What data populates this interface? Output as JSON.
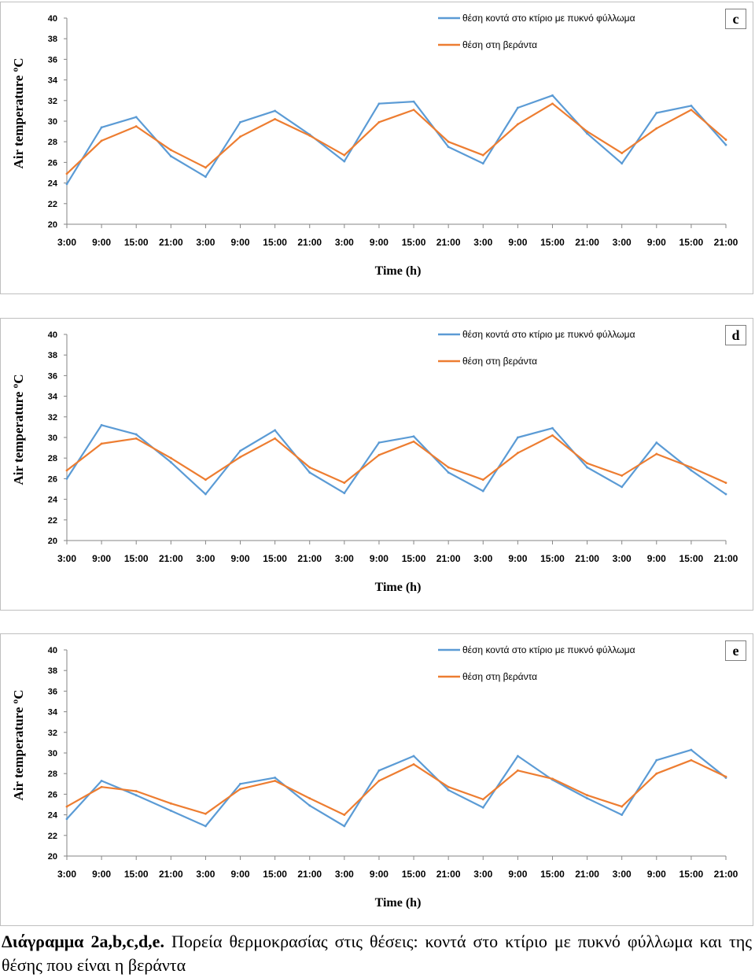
{
  "chart_data": [
    {
      "type": "line",
      "panel": "c",
      "ylabel": "Air temperature ºC",
      "xlabel": "Time (h)",
      "ylim": [
        20,
        40
      ],
      "yticks": [
        20,
        22,
        24,
        26,
        28,
        30,
        32,
        34,
        36,
        38,
        40
      ],
      "categories": [
        "3:00",
        "9:00",
        "15:00",
        "21:00",
        "3:00",
        "9:00",
        "15:00",
        "21:00",
        "3:00",
        "9:00",
        "15:00",
        "21:00",
        "3:00",
        "9:00",
        "15:00",
        "21:00",
        "3:00",
        "9:00",
        "15:00",
        "21:00"
      ],
      "series": [
        {
          "name": "θέση κοντά στο κτίριο με πυκνό φύλλωμα",
          "color": "#5b9bd5",
          "values": [
            23.9,
            29.4,
            30.4,
            26.6,
            24.6,
            29.9,
            31.0,
            28.7,
            26.1,
            31.7,
            31.9,
            27.5,
            25.9,
            31.3,
            32.5,
            28.8,
            25.9,
            30.8,
            31.5,
            27.7
          ]
        },
        {
          "name": "θέση στη βεράντα",
          "color": "#ed7d31",
          "values": [
            24.9,
            28.1,
            29.5,
            27.2,
            25.5,
            28.5,
            30.2,
            28.6,
            26.7,
            29.9,
            31.1,
            28.0,
            26.7,
            29.7,
            31.7,
            29.0,
            26.9,
            29.3,
            31.1,
            28.2
          ]
        }
      ]
    },
    {
      "type": "line",
      "panel": "d",
      "ylabel": "Air temperature ºC",
      "xlabel": "Time (h)",
      "ylim": [
        20,
        40
      ],
      "yticks": [
        20,
        22,
        24,
        26,
        28,
        30,
        32,
        34,
        36,
        38,
        40
      ],
      "categories": [
        "3:00",
        "9:00",
        "15:00",
        "21:00",
        "3:00",
        "9:00",
        "15:00",
        "21:00",
        "3:00",
        "9:00",
        "15:00",
        "21:00",
        "3:00",
        "9:00",
        "15:00",
        "21:00",
        "3:00",
        "9:00",
        "15:00",
        "21:00"
      ],
      "series": [
        {
          "name": "θέση κοντά στο κτίριο με πυκνό φύλλωμα",
          "color": "#5b9bd5",
          "values": [
            26.0,
            31.2,
            30.3,
            27.6,
            24.5,
            28.7,
            30.7,
            26.6,
            24.6,
            29.5,
            30.1,
            26.6,
            24.8,
            30.0,
            30.9,
            27.1,
            25.2,
            29.5,
            26.8,
            24.5
          ]
        },
        {
          "name": "θέση στη βεράντα",
          "color": "#ed7d31",
          "values": [
            26.8,
            29.4,
            29.9,
            28.0,
            25.9,
            28.1,
            29.9,
            27.1,
            25.6,
            28.3,
            29.6,
            27.1,
            25.9,
            28.5,
            30.2,
            27.5,
            26.3,
            28.4,
            27.1,
            25.6
          ]
        }
      ]
    },
    {
      "type": "line",
      "panel": "e",
      "ylabel": "Air temperature ºC",
      "xlabel": "Time (h)",
      "ylim": [
        20,
        40
      ],
      "yticks": [
        20,
        22,
        24,
        26,
        28,
        30,
        32,
        34,
        36,
        38,
        40
      ],
      "categories": [
        "3:00",
        "9:00",
        "15:00",
        "21:00",
        "3:00",
        "9:00",
        "15:00",
        "21:00",
        "3:00",
        "9:00",
        "15:00",
        "21:00",
        "3:00",
        "9:00",
        "15:00",
        "21:00",
        "3:00",
        "9:00",
        "15:00",
        "21:00"
      ],
      "series": [
        {
          "name": "θέση κοντά στο κτίριο με πυκνό φύλλωμα",
          "color": "#5b9bd5",
          "values": [
            23.6,
            27.3,
            25.9,
            24.4,
            22.9,
            27.0,
            27.6,
            24.9,
            22.9,
            28.3,
            29.7,
            26.4,
            24.7,
            29.7,
            27.4,
            25.6,
            24.0,
            29.3,
            30.3,
            27.6
          ]
        },
        {
          "name": "θέση στη βεράντα",
          "color": "#ed7d31",
          "values": [
            24.8,
            26.7,
            26.3,
            25.1,
            24.1,
            26.5,
            27.3,
            25.6,
            24.0,
            27.3,
            28.9,
            26.7,
            25.5,
            28.3,
            27.5,
            25.9,
            24.8,
            28.0,
            29.3,
            27.7
          ]
        }
      ]
    }
  ],
  "caption": {
    "label": "Διάγραμμα 2a,b,c,d,e.",
    "text": "Πορεία θερμοκρασίας στις θέσεις: κοντά στο κτίριο με πυκνό φύλλωμα και της θέσης που είναι η βεράντα"
  }
}
